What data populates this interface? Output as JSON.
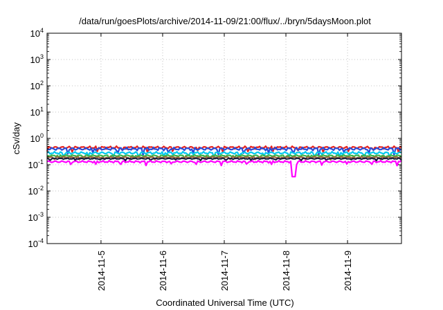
{
  "chart_data": {
    "type": "line",
    "title": "/data/run/goesPlots/archive/2014-11-09/21:00/flux/../bryn/5daysMoon.plot",
    "xlabel": "Coordinated Universal Time (UTC)",
    "ylabel": "cSv/day",
    "yscale": "log",
    "ylim": [
      0.0001,
      10000
    ],
    "xlim": [
      "2014-11-04T03:00",
      "2014-11-09T21:00"
    ],
    "grid": true,
    "legend": "none",
    "y_ticks": [
      {
        "value": 10000,
        "base": "10",
        "exp": "4"
      },
      {
        "value": 1000,
        "base": "10",
        "exp": "3"
      },
      {
        "value": 100,
        "base": "10",
        "exp": "2"
      },
      {
        "value": 10,
        "base": "10",
        "exp": "1"
      },
      {
        "value": 1,
        "base": "10",
        "exp": "0"
      },
      {
        "value": 0.1,
        "base": "10",
        "exp": "-1"
      },
      {
        "value": 0.01,
        "base": "10",
        "exp": "-2"
      },
      {
        "value": 0.001,
        "base": "10",
        "exp": "-3"
      },
      {
        "value": 0.0001,
        "base": "10",
        "exp": "-4"
      }
    ],
    "x_ticks": [
      {
        "value": "2014-11-05T00:00",
        "label": "2014-11-5"
      },
      {
        "value": "2014-11-06T00:00",
        "label": "2014-11-6"
      },
      {
        "value": "2014-11-07T00:00",
        "label": "2014-11-7"
      },
      {
        "value": "2014-11-08T00:00",
        "label": "2014-11-8"
      },
      {
        "value": "2014-11-09T00:00",
        "label": "2014-11-9"
      }
    ],
    "series": [
      {
        "color": "#e6231e",
        "level": 0.45,
        "amp": 0.13,
        "phase": 0.0
      },
      {
        "color": "#2a4bd7",
        "level": 0.4,
        "amp": 0.15,
        "phase": 0.7
      },
      {
        "color": "#00c8f0",
        "level": 0.28,
        "amp": 0.12,
        "phase": 1.9
      },
      {
        "color": "#3ab54a",
        "level": 0.22,
        "amp": 0.08,
        "phase": 2.5
      },
      {
        "color": "#9b6b3a",
        "level": 0.19,
        "amp": 0.07,
        "phase": 3.1
      },
      {
        "color": "#1c1c3c",
        "level": 0.17,
        "amp": 0.06,
        "phase": 3.8
      },
      {
        "color": "#ff00ff",
        "level": 0.13,
        "amp": 0.1,
        "phase": 4.6,
        "dip": {
          "x": "2014-11-08T03:00",
          "y": 0.035
        }
      }
    ]
  }
}
